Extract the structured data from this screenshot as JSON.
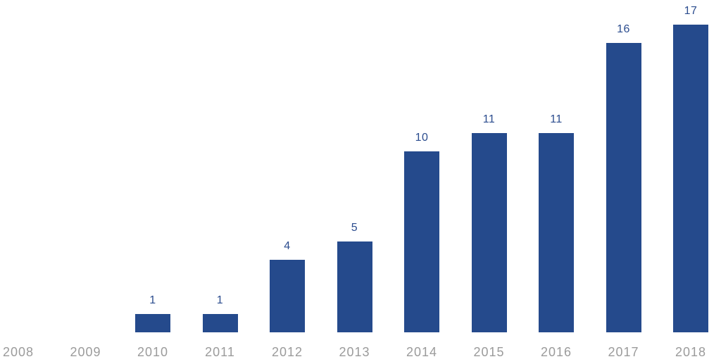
{
  "chart_data": {
    "type": "bar",
    "title": "",
    "xlabel": "",
    "ylabel": "",
    "categories": [
      "2008",
      "2009",
      "2010",
      "2011",
      "2012",
      "2013",
      "2014",
      "2015",
      "2016",
      "2017",
      "2018"
    ],
    "values": [
      0,
      0,
      1,
      1,
      4,
      5,
      10,
      11,
      11,
      16,
      17
    ],
    "value_labels": [
      "",
      "",
      "1",
      "1",
      "4",
      "5",
      "10",
      "11",
      "11",
      "16",
      "17"
    ],
    "ylim": [
      0,
      17.5
    ],
    "grid": false,
    "legend": "none",
    "bar_color": "#254a8c",
    "value_label_color": "#2b4c8e",
    "axis_label_color": "#9b9b9b",
    "background_color": "#ffffff"
  }
}
